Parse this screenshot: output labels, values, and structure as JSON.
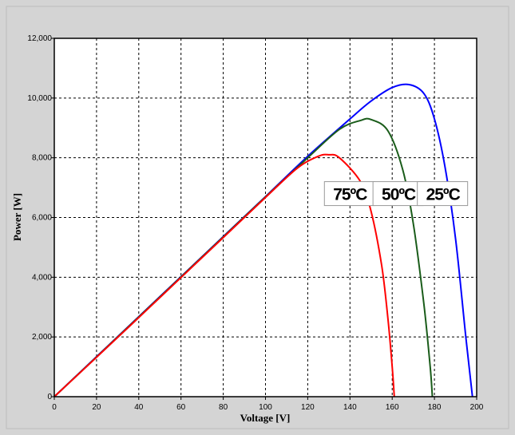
{
  "chart_data": {
    "type": "line",
    "xlabel": "Voltage [V]",
    "ylabel": "Power  [W]",
    "xlim": [
      0,
      200
    ],
    "ylim": [
      0,
      12000
    ],
    "x_ticks": [
      "0",
      "20",
      "40",
      "60",
      "80",
      "100",
      "120",
      "140",
      "160",
      "180",
      "200"
    ],
    "y_ticks": [
      "0",
      "2,000",
      "4,000",
      "6,000",
      "8,000",
      "10,000",
      "12,000"
    ],
    "grid": true,
    "series": [
      {
        "color": "#0000ff",
        "x": [
          0,
          20,
          40,
          60,
          80,
          100,
          120,
          140,
          150,
          160,
          168,
          175,
          180,
          185,
          190,
          195,
          198
        ],
        "y": [
          0,
          1340,
          2680,
          4020,
          5360,
          6700,
          8050,
          9300,
          9900,
          10350,
          10450,
          10150,
          9300,
          7700,
          5300,
          1900,
          0
        ]
      },
      {
        "color": "#1a5c1a",
        "x": [
          0,
          20,
          40,
          60,
          80,
          100,
          120,
          135,
          145,
          150,
          158,
          165,
          170,
          175,
          178,
          179
        ],
        "y": [
          0,
          1330,
          2670,
          4010,
          5350,
          6690,
          8000,
          8950,
          9250,
          9280,
          8900,
          7600,
          5800,
          3100,
          1000,
          0
        ]
      },
      {
        "color": "#ff0000",
        "x": [
          0,
          20,
          40,
          60,
          80,
          100,
          115,
          125,
          130,
          135,
          145,
          150,
          155,
          158,
          160,
          161
        ],
        "y": [
          0,
          1320,
          2650,
          3990,
          5330,
          6670,
          7650,
          8050,
          8100,
          8000,
          7200,
          6200,
          4400,
          2600,
          1000,
          0
        ]
      }
    ],
    "annotations": [
      {
        "text": "75ºC",
        "x": 140,
        "y": 6800
      },
      {
        "text": "50ºC",
        "x": 163,
        "y": 6800
      },
      {
        "text": "25ºC",
        "x": 184,
        "y": 6800
      }
    ]
  }
}
